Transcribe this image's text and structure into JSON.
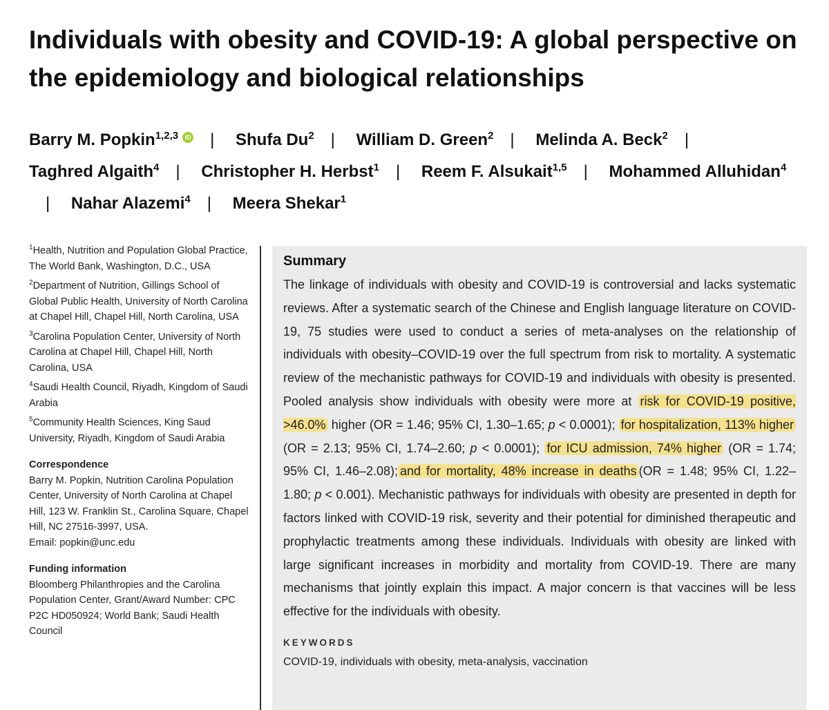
{
  "title": "Individuals with obesity and COVID-19: A global perspective on the epidemiology and biological relationships",
  "authors": [
    {
      "name": "Barry M. Popkin",
      "sup": "1,2,3",
      "orcid": "iD"
    },
    {
      "name": "Shufa Du",
      "sup": "2"
    },
    {
      "name": "William D. Green",
      "sup": "2"
    },
    {
      "name": "Melinda A. Beck",
      "sup": "2"
    },
    {
      "name": "Taghred Algaith",
      "sup": "4"
    },
    {
      "name": "Christopher H. Herbst",
      "sup": "1"
    },
    {
      "name": "Reem F. Alsukait",
      "sup": "1,5"
    },
    {
      "name": "Mohammed Alluhidan",
      "sup": "4"
    },
    {
      "name": "Nahar Alazemi",
      "sup": "4"
    },
    {
      "name": "Meera Shekar",
      "sup": "1"
    }
  ],
  "separator": "|",
  "affiliations": [
    {
      "num": "1",
      "text": "Health, Nutrition and Population Global Practice, The World Bank, Washington, D.C., USA"
    },
    {
      "num": "2",
      "text": "Department of Nutrition, Gillings School of Global Public Health, University of North Carolina at Chapel Hill, Chapel Hill, North Carolina, USA"
    },
    {
      "num": "3",
      "text": "Carolina Population Center, University of North Carolina at Chapel Hill, Chapel Hill, North Carolina, USA"
    },
    {
      "num": "4",
      "text": "Saudi Health Council, Riyadh, Kingdom of Saudi Arabia"
    },
    {
      "num": "5",
      "text": "Community Health Sciences, King Saud University, Riyadh, Kingdom of Saudi Arabia"
    }
  ],
  "correspondence": {
    "heading": "Correspondence",
    "text": "Barry M. Popkin, Nutrition Carolina Population Center, University of North Carolina at Chapel Hill, 123 W. Franklin St., Carolina Square, Chapel Hill, NC 27516-3997, USA.",
    "email": "Email: popkin@unc.edu"
  },
  "funding": {
    "heading": "Funding information",
    "text": "Bloomberg Philanthropies and the Carolina Population Center, Grant/Award Number: CPC P2C HD050924; World Bank; Saudi Health Council"
  },
  "summary": {
    "heading": "Summary",
    "p1": "The linkage of individuals with obesity and COVID-19 is controversial and lacks systematic reviews. After a systematic search of the Chinese and English language literature on COVID-19, 75 studies were used to conduct a series of meta-analyses on the relationship of individuals with obesity–COVID-19 over the full spectrum from risk to mortality. A systematic review of the mechanistic pathways for COVID-19 and individuals with obesity is presented. Pooled analysis show individuals with obesity were more at",
    "h1": "risk for COVID-19 positive, >46.0%",
    "t1": " higher (OR = 1.46; 95% CI, 1.30–1.65; ",
    "p_var": "p",
    "t2": " < 0.0001); ",
    "h2": "for hospitalization, 113% higher",
    "t3": " (OR = 2.13; 95% CI, 1.74–2.60; ",
    "t4": " < 0.0001); ",
    "h3": "for ICU admission, 74% higher",
    "t5": " (OR = 1.74; 95% CI, 1.46–2.08);",
    "h4": "and for mortality, 48% increase in deaths",
    "t6": "(OR = 1.48; 95% CI, 1.22–1.80; ",
    "t7": " < 0.001). Mechanistic pathways for individuals with obesity are presented in depth for factors linked with COVID-19 risk, severity and their potential for diminished therapeutic and prophylactic treatments among these individuals. Individuals with obesity are linked with large significant increases in morbidity and mortality from COVID-19. There are many mechanisms that jointly explain this impact. A major concern is that vaccines will be less effective for the individuals with obesity."
  },
  "keywords": {
    "heading": "KEYWORDS",
    "text": "COVID-19, individuals with obesity, meta-analysis, vaccination"
  },
  "colors": {
    "highlight": "#f5e08e",
    "abstract_bg": "#ebebeb",
    "orcid": "#a6ce39"
  }
}
